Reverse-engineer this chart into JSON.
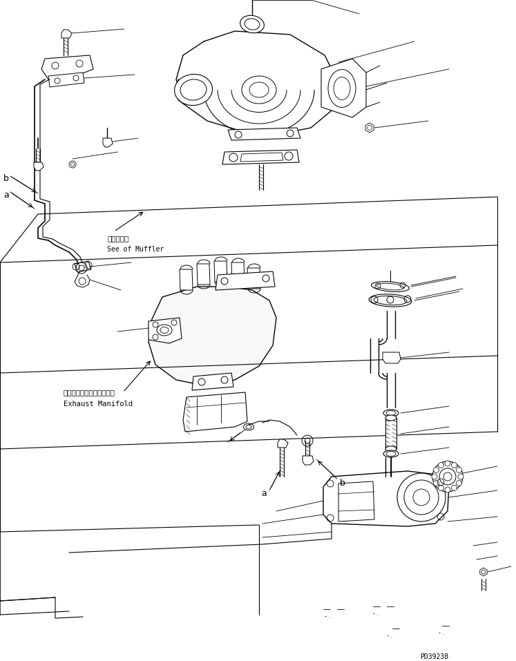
{
  "background_color": "#ffffff",
  "line_color": "#000000",
  "part_code": "PD39238",
  "labels": {
    "muffler_jp": "マフラ参照",
    "muffler_en": "See of Muffler",
    "exhaust_jp": "エキゾーストマニホールド",
    "exhaust_en": "Exhaust Manifold"
  },
  "figsize": [
    7.47,
    9.57
  ],
  "dpi": 100
}
